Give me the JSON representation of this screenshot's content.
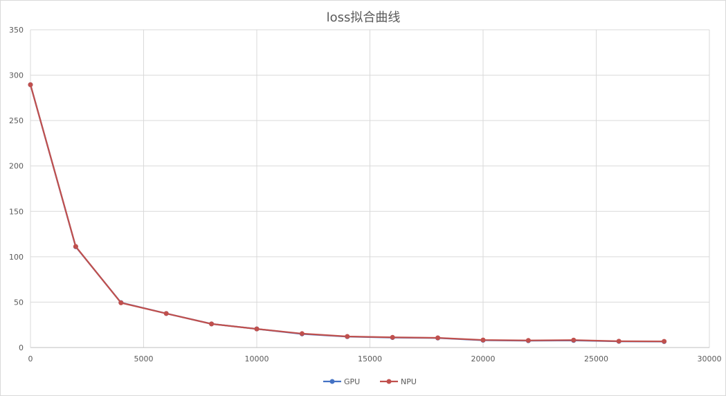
{
  "chart_data": {
    "type": "line",
    "title": "loss拟合曲线",
    "xlabel": "",
    "ylabel": "",
    "xlim": [
      0,
      30000
    ],
    "ylim": [
      0,
      350
    ],
    "xticks": [
      "0",
      "5000",
      "10000",
      "15000",
      "20000",
      "25000",
      "30000"
    ],
    "yticks": [
      "0",
      "50",
      "100",
      "150",
      "200",
      "250",
      "300",
      "350"
    ],
    "grid": true,
    "legend_position": "bottom",
    "x": [
      0,
      2000,
      4000,
      6000,
      8000,
      10000,
      12000,
      14000,
      16000,
      18000,
      20000,
      22000,
      24000,
      26000,
      28000
    ],
    "series": [
      {
        "name": "GPU",
        "color": "#4472c4",
        "values": [
          289.5,
          111,
          49.5,
          37.5,
          26,
          20.5,
          15,
          12,
          11,
          10.5,
          8,
          7.5,
          7.8,
          6.8,
          6.6
        ]
      },
      {
        "name": "NPU",
        "color": "#c0504d",
        "values": [
          289.5,
          111.3,
          49.3,
          37.5,
          26,
          20.5,
          15.3,
          12.2,
          11.2,
          10.7,
          8.3,
          7.8,
          8.2,
          7,
          6.8
        ]
      }
    ]
  }
}
